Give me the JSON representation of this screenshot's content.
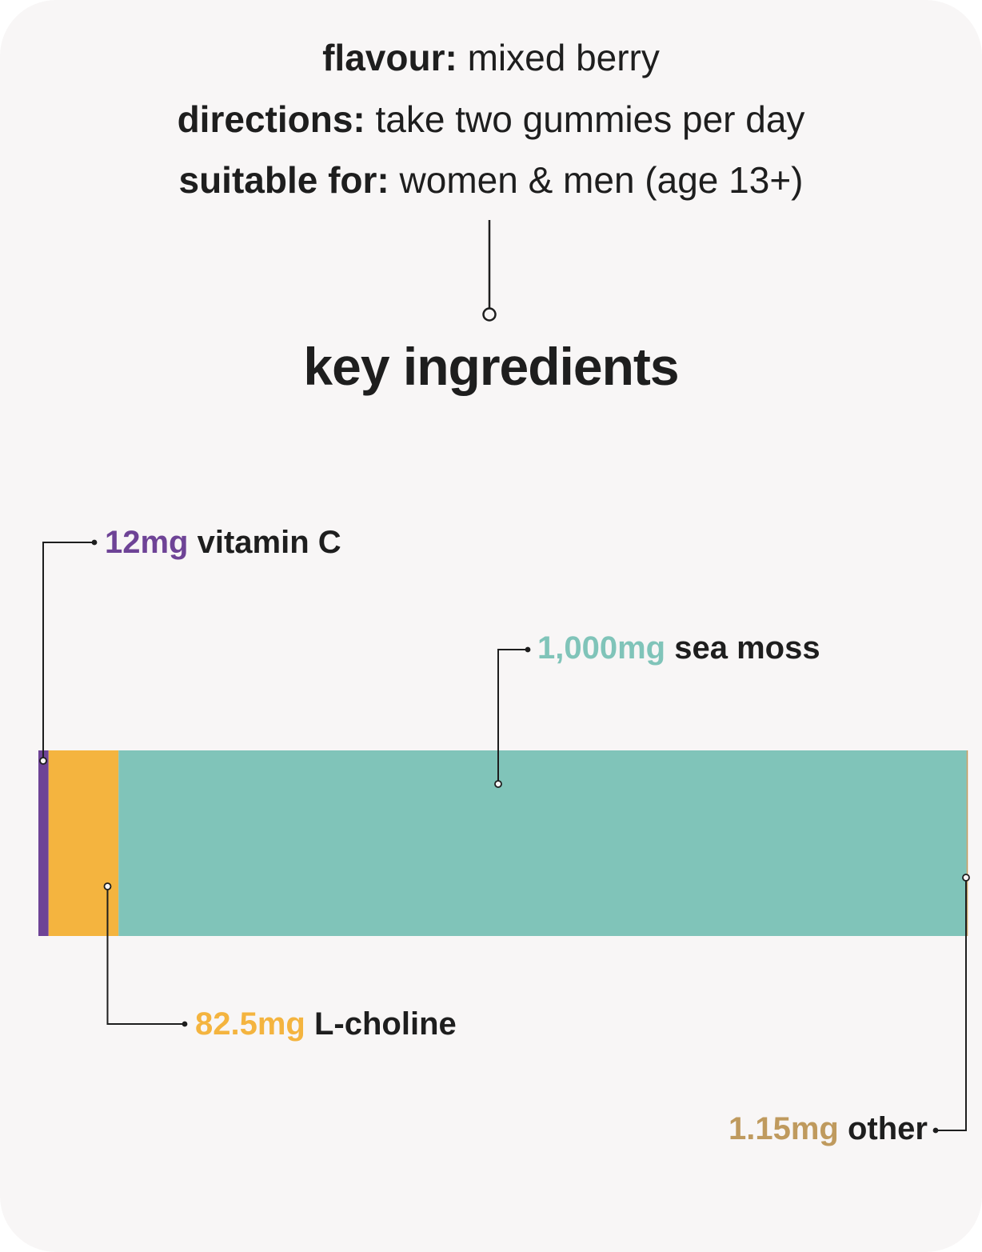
{
  "info": {
    "flavour": {
      "label": "flavour:",
      "value": "mixed berry"
    },
    "directions": {
      "label": "directions:",
      "value": "take two gummies per day"
    },
    "suitable": {
      "label": "suitable for:",
      "value": "women & men (age 13+)"
    }
  },
  "heading": "key ingredients",
  "chart_data": {
    "type": "bar",
    "orientation": "horizontal-stacked",
    "unit": "mg",
    "categories": [
      "vitamin C",
      "L-choline",
      "sea moss",
      "other"
    ],
    "values": [
      12,
      82.5,
      1000,
      1.15
    ],
    "value_labels": [
      "12mg",
      "82.5mg",
      "1,000mg",
      "1.15mg"
    ],
    "colors": [
      "#6e4396",
      "#f4b43f",
      "#80c4b9",
      "#bf9a5e"
    ],
    "label_placement": [
      "top-left",
      "bottom-left",
      "top-center",
      "bottom-right"
    ]
  }
}
